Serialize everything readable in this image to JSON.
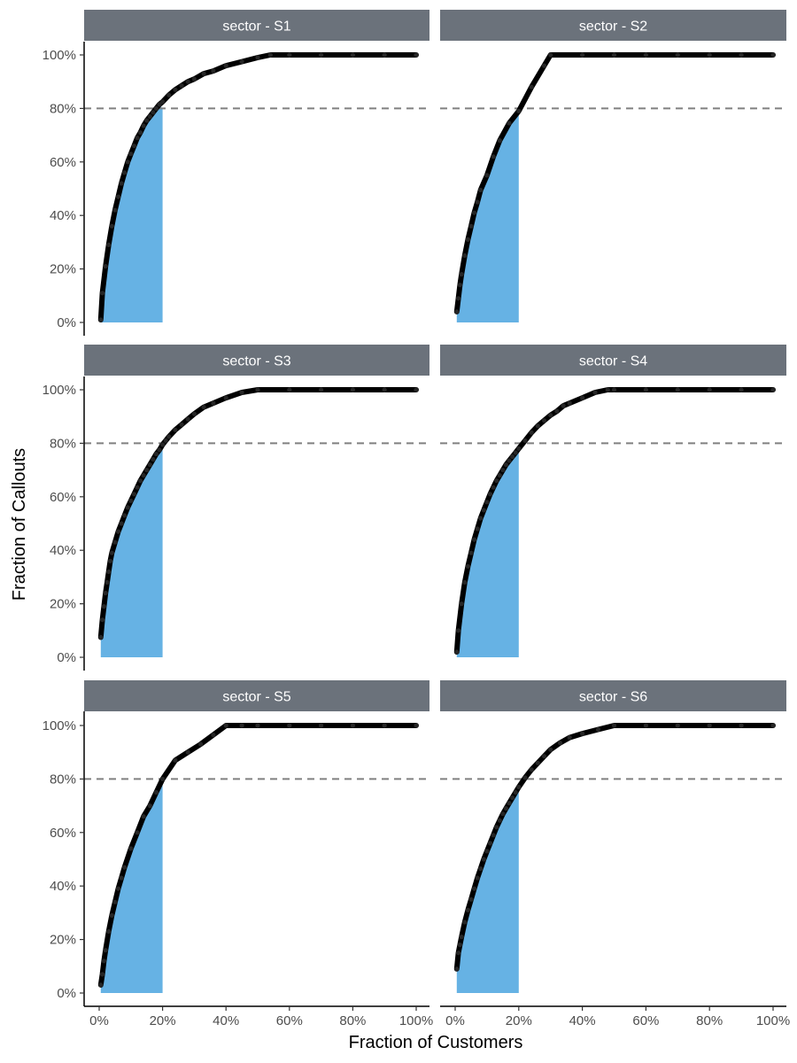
{
  "chart_data": {
    "type": "line",
    "xlabel": "Fraction of Customers",
    "ylabel": "Fraction of Callouts",
    "xlim": [
      0,
      100
    ],
    "ylim": [
      0,
      100
    ],
    "x_ticks": [
      "0%",
      "20%",
      "40%",
      "60%",
      "80%",
      "100%"
    ],
    "y_ticks": [
      "0%",
      "20%",
      "40%",
      "60%",
      "80%",
      "100%"
    ],
    "reference_line": {
      "y": 80,
      "style": "dashed",
      "color": "#808080"
    },
    "highlight": {
      "x_from": 0,
      "x_to": 20,
      "color": "#66b2e4"
    },
    "line_color": "#000000",
    "strip_color": "#6b727b",
    "legend": "none",
    "grid": false,
    "panels": [
      {
        "label": "sector - S1",
        "series": [
          {
            "x": [
              0.5,
              1,
              2,
              3,
              4,
              5,
              6,
              7,
              8,
              9,
              10,
              11,
              12,
              13,
              14,
              15,
              16,
              17,
              18,
              19,
              20,
              22,
              24,
              26,
              28,
              30,
              33,
              36,
              40,
              45,
              50,
              54,
              60,
              70,
              80,
              90,
              100
            ],
            "y": [
              1,
              11,
              21,
              29,
              36,
              42,
              47,
              52,
              56,
              60,
              63,
              66,
              69,
              71,
              73.5,
              75.5,
              77,
              78.5,
              80,
              81.5,
              82.5,
              85,
              87,
              88.5,
              90,
              91,
              93,
              94,
              96,
              97.5,
              99,
              100,
              100,
              100,
              100,
              100,
              100
            ]
          }
        ]
      },
      {
        "label": "sector - S2",
        "series": [
          {
            "x": [
              0.5,
              1,
              1.5,
              2,
              3,
              4,
              5,
              6,
              7,
              8,
              10,
              12,
              14,
              17,
              20,
              24,
              28,
              30,
              40,
              50,
              60,
              70,
              80,
              90,
              100
            ],
            "y": [
              4,
              9,
              14,
              18,
              25,
              31,
              36,
              41,
              45,
              49.5,
              55,
              62,
              68,
              74.5,
              79,
              88,
              96,
              100,
              100,
              100,
              100,
              100,
              100,
              100,
              100
            ]
          }
        ]
      },
      {
        "label": "sector - S3",
        "series": [
          {
            "x": [
              0.5,
              1,
              1.5,
              2,
              2.5,
              3,
              3.5,
              4,
              5,
              6,
              7,
              8,
              9,
              10,
              11,
              12,
              13,
              14,
              15,
              16,
              17,
              18,
              19,
              20,
              21,
              22,
              24,
              26,
              28,
              30,
              33,
              36,
              40,
              45,
              50,
              60,
              70,
              80,
              90,
              100
            ],
            "y": [
              7.5,
              14,
              19,
              24,
              28,
              32,
              36,
              39,
              43,
              47,
              50,
              53,
              56,
              58.5,
              61,
              63.5,
              66,
              68,
              70,
              72,
              74,
              76,
              77.5,
              79.5,
              81,
              82.5,
              85,
              87,
              89,
              91,
              93.5,
              95,
              97,
              99,
              100,
              100,
              100,
              100,
              100,
              100
            ]
          }
        ]
      },
      {
        "label": "sector - S4",
        "series": [
          {
            "x": [
              0.5,
              1,
              2,
              3,
              4,
              5,
              6,
              7,
              8,
              9,
              10,
              11,
              12,
              13,
              14,
              15,
              16,
              17,
              18,
              19,
              20,
              22,
              24,
              26,
              28,
              30,
              32,
              34,
              36,
              40,
              44,
              48,
              50,
              60,
              70,
              80,
              90,
              100
            ],
            "y": [
              2,
              10,
              20,
              28,
              34,
              39,
              44,
              48,
              52,
              55,
              58,
              61,
              63.5,
              66,
              68,
              70,
              72,
              73.5,
              75,
              76.5,
              78,
              81,
              84,
              86.5,
              88.5,
              90.5,
              92,
              94,
              95,
              97,
              99,
              100,
              100,
              100,
              100,
              100,
              100,
              100
            ]
          }
        ]
      },
      {
        "label": "sector - S5",
        "series": [
          {
            "x": [
              0.5,
              1,
              1.5,
              2,
              3,
              4,
              5,
              6,
              7,
              8,
              10,
              12,
              14,
              16,
              18,
              20,
              24,
              28,
              32,
              36,
              40,
              45,
              50,
              60,
              70,
              80,
              90,
              100
            ],
            "y": [
              3,
              7,
              12,
              16,
              23,
              29,
              34,
              39,
              43,
              47,
              54,
              60,
              66,
              70,
              75,
              80,
              87,
              90,
              93,
              96.5,
              100,
              100,
              100,
              100,
              100,
              100,
              100,
              100
            ]
          }
        ]
      },
      {
        "label": "sector - S6",
        "series": [
          {
            "x": [
              0.5,
              1,
              1.5,
              2,
              3,
              4,
              5,
              6,
              7,
              8,
              9,
              10,
              11,
              12,
              13,
              14,
              15,
              16,
              17,
              18,
              19,
              20,
              22,
              24,
              26,
              28,
              30,
              33,
              36,
              40,
              45,
              50,
              60,
              70,
              80,
              90,
              100
            ],
            "y": [
              9,
              15,
              18,
              21,
              26.5,
              31,
              35,
              39,
              43,
              46.5,
              50,
              53,
              56,
              59,
              62,
              64.5,
              67,
              69,
              71,
              73,
              75,
              77,
              80.5,
              83.5,
              86,
              88.5,
              91,
              93.5,
              95.5,
              97,
              98.5,
              100,
              100,
              100,
              100,
              100,
              100
            ]
          }
        ]
      }
    ]
  }
}
